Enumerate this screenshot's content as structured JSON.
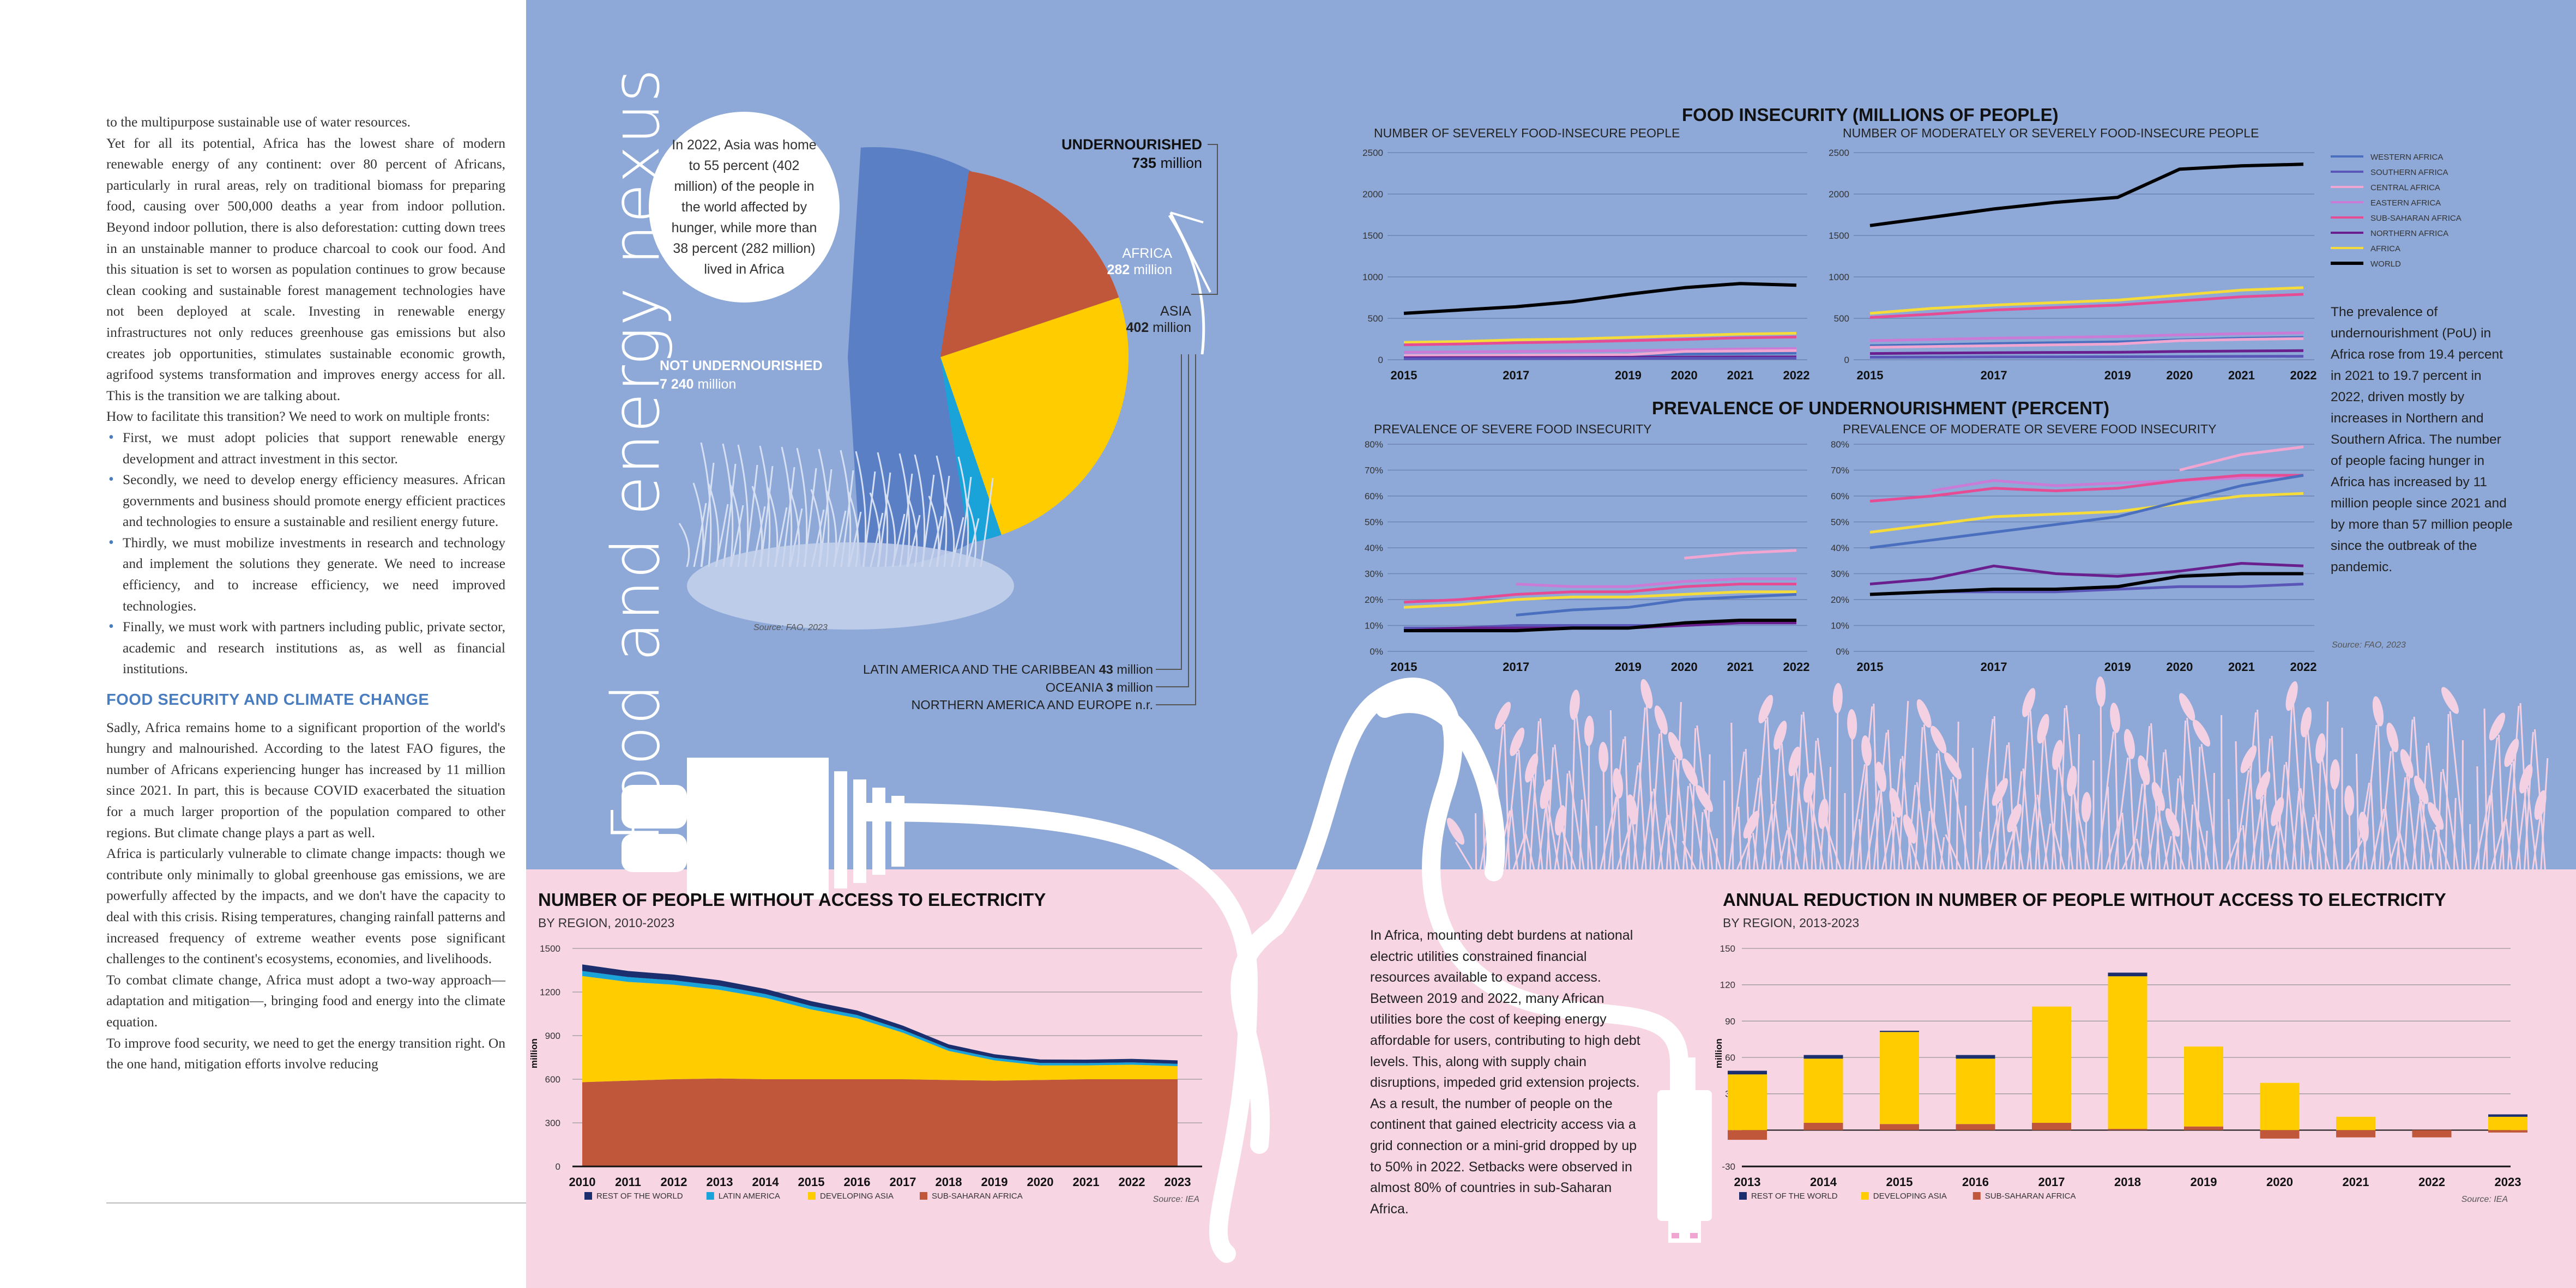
{
  "left_page": {
    "p1": "to the multipurpose sustainable use of water resources.",
    "p2": "Yet for all its potential, Africa has the lowest share of modern renewable energy of any continent: over 80 percent of Africans, particularly in rural areas, rely on traditional biomass for preparing food, causing over 500,000 deaths a year from indoor pollution. Beyond indoor pollution, there is also deforestation: cutting down trees in an unstainable manner to produce charcoal to cook our food. And this situation is set to worsen as population continues to grow because clean cooking and sustainable forest management technologies have not been deployed at scale. Investing in renewable energy infrastructures not only reduces greenhouse gas emissions but also creates job opportunities, stimulates sustainable economic growth, agrifood systems transformation and improves energy access for all. This is the transition we are talking about.",
    "p3": "How to facilitate this transition? We need to work on multiple fronts:",
    "bullets": [
      "First, we must adopt policies that support renewable energy development and attract investment in this sector.",
      "Secondly, we need to develop energy efficiency measures. African governments and business should promote energy efficient practices and technologies to ensure a sustainable and resilient energy future.",
      "Thirdly, we must mobilize investments in research and technology and implement the solutions they generate. We need to increase efficiency, and to increase efficiency, we need improved technologies.",
      "Finally, we must work with partners including public, private sector, academic and research institutions as, as well as financial institutions."
    ],
    "heading": "FOOD SECURITY AND CLIMATE CHANGE",
    "p4": "Sadly, Africa remains home to a significant proportion of the world's hungry and malnourished. According to the latest FAO figures, the number of Africans experiencing hunger has increased by 11 million since 2021. In part, this is because COVID exacerbated the situation for a much larger proportion of the population compared to other regions. But climate change plays a part as well.",
    "p5": "Africa is particularly vulnerable to climate change impacts: though we contribute only minimally to global greenhouse gas emissions, we are powerfully affected by the impacts, and we don't have the capacity to deal with this crisis. Rising temperatures, changing rainfall patterns and increased frequency of extreme weather events pose significant challenges to the continent's ecosystems, economies, and livelihoods.",
    "p6": "To combat climate change, Africa must adopt a two-way approach—adaptation and mitigation—, bringing food and energy into the climate equation.",
    "p7": "To improve food security, we need to get the energy transition right. On the one hand, mitigation efforts involve reducing"
  },
  "vertical_title": "Food and energy nexus",
  "pie": {
    "bubble": "In 2022, Asia was home to 55 percent (402 million) of the people in the world affected by hunger, while more than 38 percent (282 million) lived in Africa",
    "undernourished_label": "UNDERNOURISHED",
    "undernourished_value": "735",
    "not_label": "NOT UNDERNOURISHED",
    "not_value": "7 240",
    "unit": "million",
    "africa_label": "AFRICA",
    "africa_value": "282",
    "asia_label": "ASIA",
    "asia_value": "402",
    "latam": "LATIN AMERICA AND THE CARIBBEAN",
    "latam_value": "43",
    "oceania": "OCEANIA",
    "oceania_value": "3",
    "namerica": "NORTHERN AMERICA AND EUROPE n.r.",
    "source": "Source: FAO, 2023",
    "colors": {
      "not": "#5b7fc4",
      "africa": "#c1573a",
      "asia": "#ffcc00",
      "latam": "#1aa3d9"
    }
  },
  "food_insecurity_title": "FOOD INSECURITY (MILLIONS OF PEOPLE)",
  "prevalence_title": "PREVALENCE OF UNDERNOURISHMENT (PERCENT)",
  "blue_paragraph": "The prevalence of undernourishment (PoU) in Africa rose from 19.4 percent in 2021 to 19.7 percent in 2022, driven mostly by increases in Northern and Southern Africa. The number of people facing hunger in Africa has increased by 11 million people since 2021 and by more than 57 million people since the outbreak of the pandemic.",
  "blue_source": "Source: FAO, 2023",
  "legend_regions": [
    {
      "name": "WESTERN AFRICA",
      "color": "#4a6fbf"
    },
    {
      "name": "SOUTHERN AFRICA",
      "color": "#5a56b8"
    },
    {
      "name": "CENTRAL AFRICA",
      "color": "#f0a6d0"
    },
    {
      "name": "EASTERN AFRICA",
      "color": "#c97bd6"
    },
    {
      "name": "SUB-SAHARAN AFRICA",
      "color": "#e64c93"
    },
    {
      "name": "NORTHERN AFRICA",
      "color": "#6a1f8e"
    },
    {
      "name": "AFRICA",
      "color": "#f5dc3a"
    },
    {
      "name": "WORLD",
      "color": "#000000"
    }
  ],
  "electricity_paragraph": "In Africa, mounting debt burdens at national electric utilities constrained financial resources available to expand access. Between 2019 and 2022, many African utilities bore the cost of keeping energy affordable for users, contributing to high debt levels. This, along with supply chain disruptions, impeded grid extension projects. As a result, the number of people on the continent that gained electricity access via a grid connection or a mini-grid dropped by up to 50% in 2022. Setbacks were observed in almost 80% of countries in sub-Saharan Africa.",
  "chart_data": [
    {
      "type": "line",
      "title": "NUMBER OF SEVERELY FOOD-INSECURE PEOPLE",
      "x": [
        2015,
        2016,
        2017,
        2018,
        2019,
        2020,
        2021,
        2022
      ],
      "xticks": [
        "2015",
        "2017",
        "2019",
        "2020",
        "2021",
        "2022"
      ],
      "ylim": [
        0,
        2500
      ],
      "yticks": [
        "0",
        "500",
        "1000",
        "1500",
        "2000",
        "2500"
      ],
      "series": [
        {
          "name": "WORLD",
          "values": [
            560,
            600,
            640,
            700,
            790,
            870,
            920,
            900
          ]
        },
        {
          "name": "AFRICA",
          "values": [
            210,
            220,
            240,
            250,
            270,
            290,
            310,
            320
          ]
        },
        {
          "name": "SUB-SAHARAN AFRICA",
          "values": [
            180,
            190,
            205,
            215,
            230,
            245,
            265,
            275
          ]
        },
        {
          "name": "EASTERN AFRICA",
          "values": [
            90,
            95,
            100,
            105,
            110,
            120,
            130,
            135
          ]
        },
        {
          "name": "WESTERN AFRICA",
          "values": [
            40,
            45,
            50,
            55,
            60,
            70,
            75,
            80
          ]
        },
        {
          "name": "CENTRAL AFRICA",
          "values": [
            50,
            52,
            55,
            58,
            60,
            100,
            105,
            110
          ]
        },
        {
          "name": "NORTHERN AFRICA",
          "values": [
            25,
            26,
            27,
            28,
            30,
            32,
            34,
            35
          ]
        },
        {
          "name": "SOUTHERN AFRICA",
          "values": [
            12,
            13,
            14,
            15,
            16,
            17,
            18,
            18
          ]
        }
      ]
    },
    {
      "type": "line",
      "title": "NUMBER OF MODERATELY OR SEVERELY FOOD-INSECURE PEOPLE",
      "x": [
        2015,
        2016,
        2017,
        2018,
        2019,
        2020,
        2021,
        2022
      ],
      "xticks": [
        "2015",
        "2017",
        "2019",
        "2020",
        "2021",
        "2022"
      ],
      "ylim": [
        0,
        2500
      ],
      "yticks": [
        "0",
        "500",
        "1000",
        "1500",
        "2000",
        "2500"
      ],
      "series": [
        {
          "name": "WORLD",
          "values": [
            1620,
            1720,
            1820,
            1900,
            1960,
            2300,
            2340,
            2360
          ]
        },
        {
          "name": "AFRICA",
          "values": [
            560,
            620,
            660,
            690,
            720,
            780,
            840,
            870
          ]
        },
        {
          "name": "SUB-SAHARAN AFRICA",
          "values": [
            510,
            550,
            600,
            630,
            660,
            710,
            760,
            790
          ]
        },
        {
          "name": "EASTERN AFRICA",
          "values": [
            230,
            245,
            260,
            270,
            280,
            300,
            315,
            325
          ]
        },
        {
          "name": "WESTERN AFRICA",
          "values": [
            170,
            180,
            195,
            205,
            215,
            240,
            260,
            270
          ]
        },
        {
          "name": "CENTRAL AFRICA",
          "values": [
            150,
            160,
            170,
            180,
            190,
            230,
            245,
            255
          ]
        },
        {
          "name": "NORTHERN AFRICA",
          "values": [
            75,
            80,
            85,
            88,
            90,
            100,
            105,
            110
          ]
        },
        {
          "name": "SOUTHERN AFRICA",
          "values": [
            30,
            32,
            34,
            35,
            36,
            38,
            40,
            42
          ]
        }
      ]
    },
    {
      "type": "line",
      "title": "PREVALENCE OF SEVERE FOOD INSECURITY",
      "x": [
        2015,
        2016,
        2017,
        2018,
        2019,
        2020,
        2021,
        2022
      ],
      "xticks": [
        "2015",
        "2017",
        "2019",
        "2020",
        "2021",
        "2022"
      ],
      "ylim": [
        0,
        80
      ],
      "yticks": [
        "0%",
        "10%",
        "20%",
        "30%",
        "40%",
        "50%",
        "60%",
        "70%",
        "80%"
      ],
      "series": [
        {
          "name": "CENTRAL AFRICA",
          "values": [
            null,
            null,
            null,
            null,
            null,
            36,
            38,
            39
          ]
        },
        {
          "name": "EASTERN AFRICA",
          "values": [
            null,
            null,
            26,
            25,
            25,
            27,
            28,
            28
          ]
        },
        {
          "name": "SUB-SAHARAN AFRICA",
          "values": [
            19,
            20,
            22,
            23,
            23,
            25,
            26,
            26
          ]
        },
        {
          "name": "AFRICA",
          "values": [
            17,
            18,
            20,
            21,
            21,
            22,
            23,
            23
          ]
        },
        {
          "name": "WESTERN AFRICA",
          "values": [
            null,
            null,
            14,
            16,
            17,
            20,
            21,
            22
          ]
        },
        {
          "name": "SOUTHERN AFRICA",
          "values": [
            9,
            9,
            10,
            10,
            10,
            10,
            11,
            11
          ]
        },
        {
          "name": "NORTHERN AFRICA",
          "values": [
            8,
            9,
            9,
            9,
            9,
            10,
            11,
            11
          ]
        },
        {
          "name": "WORLD",
          "values": [
            8,
            8,
            8,
            9,
            9,
            11,
            12,
            12
          ]
        }
      ]
    },
    {
      "type": "line",
      "title": "PREVALENCE OF MODERATE OR SEVERE FOOD INSECURITY",
      "x": [
        2015,
        2016,
        2017,
        2018,
        2019,
        2020,
        2021,
        2022
      ],
      "xticks": [
        "2015",
        "2017",
        "2019",
        "2020",
        "2021",
        "2022"
      ],
      "ylim": [
        0,
        80
      ],
      "yticks": [
        "0%",
        "10%",
        "20%",
        "30%",
        "40%",
        "50%",
        "60%",
        "70%",
        "80%"
      ],
      "series": [
        {
          "name": "CENTRAL AFRICA",
          "values": [
            null,
            null,
            null,
            null,
            null,
            70,
            76,
            79
          ]
        },
        {
          "name": "EASTERN AFRICA",
          "values": [
            null,
            62,
            66,
            64,
            65,
            66,
            67,
            68
          ]
        },
        {
          "name": "SUB-SAHARAN AFRICA",
          "values": [
            58,
            60,
            63,
            62,
            63,
            66,
            68,
            68
          ]
        },
        {
          "name": "AFRICA",
          "values": [
            46,
            49,
            52,
            53,
            54,
            57,
            60,
            61
          ]
        },
        {
          "name": "WESTERN AFRICA",
          "values": [
            40,
            43,
            46,
            49,
            52,
            58,
            64,
            68
          ]
        },
        {
          "name": "NORTHERN AFRICA",
          "values": [
            26,
            28,
            33,
            30,
            29,
            31,
            34,
            33
          ]
        },
        {
          "name": "SOUTHERN AFRICA",
          "values": [
            22,
            23,
            23,
            23,
            24,
            25,
            25,
            26
          ]
        },
        {
          "name": "WORLD",
          "values": [
            22,
            23,
            24,
            24,
            25,
            29,
            30,
            30
          ]
        }
      ]
    },
    {
      "type": "area",
      "title": "NUMBER OF PEOPLE WITHOUT ACCESS TO ELECTRICITY",
      "subtitle": "BY REGION, 2010-2023",
      "ylabel": "million",
      "x": [
        "2010",
        "2011",
        "2012",
        "2013",
        "2014",
        "2015",
        "2016",
        "2017",
        "2018",
        "2019",
        "2020",
        "2021",
        "2022",
        "2023"
      ],
      "ylim": [
        0,
        1500
      ],
      "yticks": [
        "0",
        "300",
        "600",
        "900",
        "1200",
        "1500"
      ],
      "series": [
        {
          "name": "SUB-SAHARAN AFRICA",
          "color": "#c1573a",
          "values": [
            580,
            590,
            600,
            605,
            600,
            600,
            600,
            600,
            595,
            590,
            595,
            600,
            600,
            600
          ]
        },
        {
          "name": "DEVELOPING ASIA",
          "color": "#ffcc00",
          "values": [
            730,
            680,
            650,
            610,
            560,
            480,
            420,
            320,
            200,
            140,
            100,
            95,
            100,
            90
          ]
        },
        {
          "name": "LATIN AMERICA",
          "color": "#1aa3d9",
          "values": [
            35,
            33,
            30,
            28,
            26,
            24,
            22,
            20,
            18,
            17,
            17,
            16,
            16,
            16
          ]
        },
        {
          "name": "REST OF THE WORLD",
          "color": "#1b2f6e",
          "values": [
            45,
            42,
            40,
            38,
            35,
            33,
            31,
            29,
            27,
            25,
            24,
            24,
            24,
            24
          ]
        }
      ],
      "source": "Source: IEA"
    },
    {
      "type": "bar",
      "title": "ANNUAL REDUCTION IN NUMBER OF PEOPLE WITHOUT ACCESS TO ELECTRICITY",
      "subtitle": "BY REGION, 2013-2023",
      "ylabel": "million",
      "categories": [
        "2013",
        "2014",
        "2015",
        "2016",
        "2017",
        "2018",
        "2019",
        "2020",
        "2021",
        "2022",
        "2023"
      ],
      "ylim": [
        -30,
        150
      ],
      "yticks": [
        "-30",
        "0",
        "30",
        "60",
        "90",
        "120",
        "150"
      ],
      "series": [
        {
          "name": "SUB-SAHARAN AFRICA",
          "color": "#c1573a",
          "values": [
            -8,
            6,
            5,
            5,
            6,
            1,
            3,
            -7,
            -6,
            -6,
            -2
          ]
        },
        {
          "name": "DEVELOPING ASIA",
          "color": "#ffcc00",
          "values": [
            46,
            53,
            76,
            54,
            96,
            126,
            66,
            39,
            11,
            0,
            11
          ]
        },
        {
          "name": "REST OF THE WORLD",
          "color": "#1b2f6e",
          "values": [
            3,
            3,
            1,
            3,
            0,
            3,
            0,
            0,
            0,
            0,
            2
          ]
        }
      ],
      "source": "Source: IEA"
    }
  ]
}
